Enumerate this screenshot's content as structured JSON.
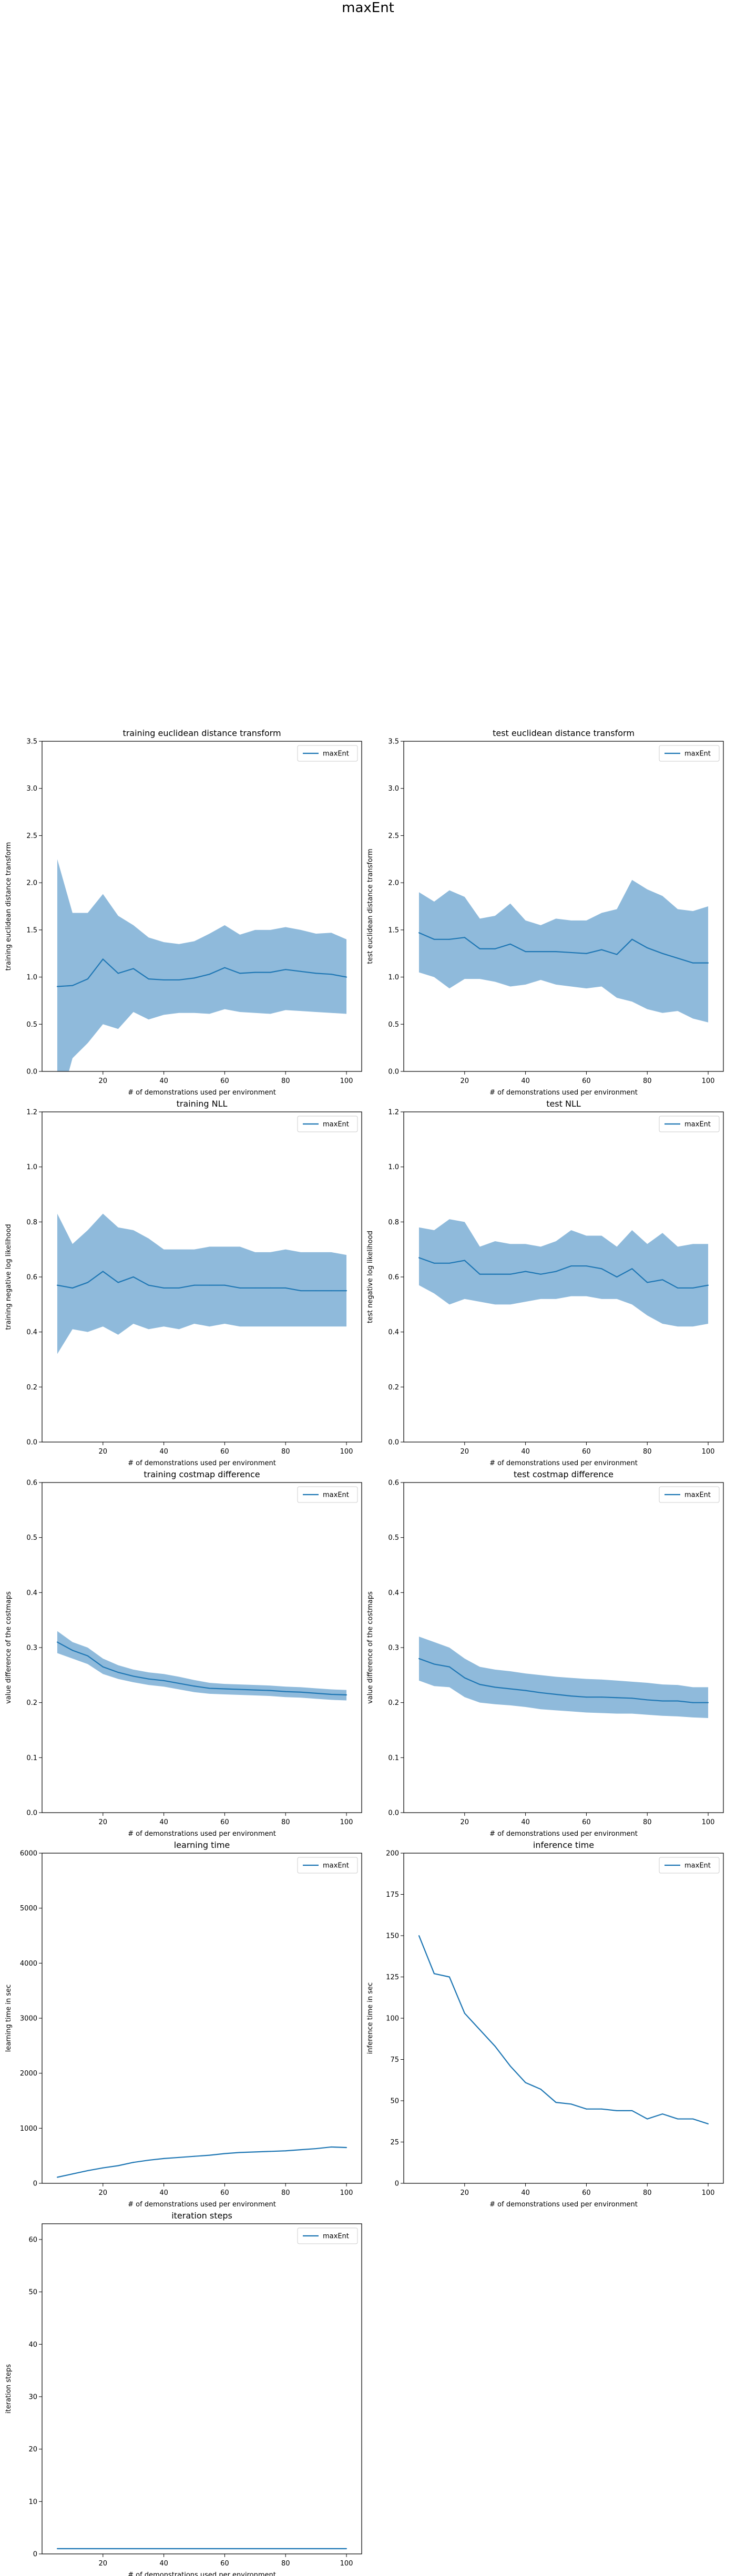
{
  "figure": {
    "title": "maxEnt"
  },
  "style": {
    "line_color": "#1f77b4",
    "band_color": "#8fbadb",
    "axes_color": "#000000"
  },
  "chart_data": [
    {
      "type": "line",
      "title": "training euclidean distance transform",
      "xlabel": "# of demonstrations used per environment",
      "ylabel": "training euclidean distance transform",
      "xlim": [
        0,
        105
      ],
      "ylim": [
        0,
        3.5
      ],
      "xticks": [
        20,
        40,
        60,
        80,
        100
      ],
      "yticks": [
        0.0,
        0.5,
        1.0,
        1.5,
        2.0,
        2.5,
        3.0,
        3.5
      ],
      "ytick_labels": [
        "0.0",
        "0.5",
        "1.0",
        "1.5",
        "2.0",
        "2.5",
        "3.0",
        "3.5"
      ],
      "legend": "top-right",
      "grid": false,
      "series": [
        {
          "name": "maxEnt",
          "x": [
            5,
            10,
            15,
            20,
            25,
            30,
            35,
            40,
            45,
            50,
            55,
            60,
            65,
            70,
            75,
            80,
            85,
            90,
            95,
            100
          ],
          "y": [
            0.9,
            0.91,
            0.98,
            1.19,
            1.04,
            1.09,
            0.98,
            0.97,
            0.97,
            0.99,
            1.03,
            1.1,
            1.04,
            1.05,
            1.05,
            1.08,
            1.06,
            1.04,
            1.03,
            1.0
          ],
          "upper": [
            2.25,
            1.68,
            1.68,
            1.88,
            1.65,
            1.55,
            1.42,
            1.37,
            1.35,
            1.38,
            1.46,
            1.55,
            1.45,
            1.5,
            1.5,
            1.53,
            1.5,
            1.46,
            1.47,
            1.4
          ],
          "lower": [
            -0.45,
            0.14,
            0.3,
            0.5,
            0.45,
            0.63,
            0.55,
            0.6,
            0.62,
            0.62,
            0.61,
            0.66,
            0.63,
            0.62,
            0.61,
            0.65,
            0.64,
            0.63,
            0.62,
            0.61
          ]
        }
      ]
    },
    {
      "type": "line",
      "title": "test euclidean distance transform",
      "xlabel": "# of demonstrations used per environment",
      "ylabel": "test euclidean distance transform",
      "xlim": [
        0,
        105
      ],
      "ylim": [
        0,
        3.5
      ],
      "xticks": [
        20,
        40,
        60,
        80,
        100
      ],
      "yticks": [
        0.0,
        0.5,
        1.0,
        1.5,
        2.0,
        2.5,
        3.0,
        3.5
      ],
      "ytick_labels": [
        "0.0",
        "0.5",
        "1.0",
        "1.5",
        "2.0",
        "2.5",
        "3.0",
        "3.5"
      ],
      "legend": "top-right",
      "grid": false,
      "series": [
        {
          "name": "maxEnt",
          "x": [
            5,
            10,
            15,
            20,
            25,
            30,
            35,
            40,
            45,
            50,
            55,
            60,
            65,
            70,
            75,
            80,
            85,
            90,
            95,
            100
          ],
          "y": [
            1.47,
            1.4,
            1.4,
            1.42,
            1.3,
            1.3,
            1.35,
            1.27,
            1.27,
            1.27,
            1.26,
            1.25,
            1.29,
            1.24,
            1.4,
            1.31,
            1.25,
            1.2,
            1.15,
            1.15
          ],
          "upper": [
            1.9,
            1.8,
            1.92,
            1.85,
            1.62,
            1.65,
            1.78,
            1.6,
            1.55,
            1.62,
            1.6,
            1.6,
            1.68,
            1.72,
            2.03,
            1.93,
            1.86,
            1.72,
            1.7,
            1.75
          ],
          "lower": [
            1.05,
            1.0,
            0.88,
            0.98,
            0.98,
            0.95,
            0.9,
            0.92,
            0.97,
            0.92,
            0.9,
            0.88,
            0.9,
            0.78,
            0.74,
            0.66,
            0.62,
            0.64,
            0.56,
            0.52
          ]
        }
      ]
    },
    {
      "type": "line",
      "title": "training NLL",
      "xlabel": "# of demonstrations used per environment",
      "ylabel": "training negative log likelihood",
      "xlim": [
        0,
        105
      ],
      "ylim": [
        0,
        1.2
      ],
      "xticks": [
        20,
        40,
        60,
        80,
        100
      ],
      "yticks": [
        0.0,
        0.2,
        0.4,
        0.6,
        0.8,
        1.0,
        1.2
      ],
      "ytick_labels": [
        "0.0",
        "0.2",
        "0.4",
        "0.6",
        "0.8",
        "1.0",
        "1.2"
      ],
      "legend": "top-right",
      "grid": false,
      "series": [
        {
          "name": "maxEnt",
          "x": [
            5,
            10,
            15,
            20,
            25,
            30,
            35,
            40,
            45,
            50,
            55,
            60,
            65,
            70,
            75,
            80,
            85,
            90,
            95,
            100
          ],
          "y": [
            0.57,
            0.56,
            0.58,
            0.62,
            0.58,
            0.6,
            0.57,
            0.56,
            0.56,
            0.57,
            0.57,
            0.57,
            0.56,
            0.56,
            0.56,
            0.56,
            0.55,
            0.55,
            0.55,
            0.55
          ],
          "upper": [
            0.83,
            0.72,
            0.77,
            0.83,
            0.78,
            0.77,
            0.74,
            0.7,
            0.7,
            0.7,
            0.71,
            0.71,
            0.71,
            0.69,
            0.69,
            0.7,
            0.69,
            0.69,
            0.69,
            0.68
          ],
          "lower": [
            0.32,
            0.41,
            0.4,
            0.42,
            0.39,
            0.43,
            0.41,
            0.42,
            0.41,
            0.43,
            0.42,
            0.43,
            0.42,
            0.42,
            0.42,
            0.42,
            0.42,
            0.42,
            0.42,
            0.42
          ]
        }
      ]
    },
    {
      "type": "line",
      "title": "test NLL",
      "xlabel": "# of demonstrations used per environment",
      "ylabel": "test negative log likelihood",
      "xlim": [
        0,
        105
      ],
      "ylim": [
        0,
        1.2
      ],
      "xticks": [
        20,
        40,
        60,
        80,
        100
      ],
      "yticks": [
        0.0,
        0.2,
        0.4,
        0.6,
        0.8,
        1.0,
        1.2
      ],
      "ytick_labels": [
        "0.0",
        "0.2",
        "0.4",
        "0.6",
        "0.8",
        "1.0",
        "1.2"
      ],
      "legend": "top-right",
      "grid": false,
      "series": [
        {
          "name": "maxEnt",
          "x": [
            5,
            10,
            15,
            20,
            25,
            30,
            35,
            40,
            45,
            50,
            55,
            60,
            65,
            70,
            75,
            80,
            85,
            90,
            95,
            100
          ],
          "y": [
            0.67,
            0.65,
            0.65,
            0.66,
            0.61,
            0.61,
            0.61,
            0.62,
            0.61,
            0.62,
            0.64,
            0.64,
            0.63,
            0.6,
            0.63,
            0.58,
            0.59,
            0.56,
            0.56,
            0.57
          ],
          "upper": [
            0.78,
            0.77,
            0.81,
            0.8,
            0.71,
            0.73,
            0.72,
            0.72,
            0.71,
            0.73,
            0.77,
            0.75,
            0.75,
            0.71,
            0.77,
            0.72,
            0.76,
            0.71,
            0.72,
            0.72
          ],
          "lower": [
            0.57,
            0.54,
            0.5,
            0.52,
            0.51,
            0.5,
            0.5,
            0.51,
            0.52,
            0.52,
            0.53,
            0.53,
            0.52,
            0.52,
            0.5,
            0.46,
            0.43,
            0.42,
            0.42,
            0.43
          ]
        }
      ]
    },
    {
      "type": "line",
      "title": "training costmap difference",
      "xlabel": "# of demonstrations used per environment",
      "ylabel": "value difference of the costmaps",
      "xlim": [
        0,
        105
      ],
      "ylim": [
        0,
        0.6
      ],
      "xticks": [
        20,
        40,
        60,
        80,
        100
      ],
      "yticks": [
        0.0,
        0.1,
        0.2,
        0.3,
        0.4,
        0.5,
        0.6
      ],
      "ytick_labels": [
        "0.0",
        "0.1",
        "0.2",
        "0.3",
        "0.4",
        "0.5",
        "0.6"
      ],
      "legend": "top-right",
      "grid": false,
      "series": [
        {
          "name": "maxEnt",
          "x": [
            5,
            10,
            15,
            20,
            25,
            30,
            35,
            40,
            45,
            50,
            55,
            60,
            65,
            70,
            75,
            80,
            85,
            90,
            95,
            100
          ],
          "y": [
            0.31,
            0.295,
            0.285,
            0.265,
            0.255,
            0.248,
            0.243,
            0.24,
            0.235,
            0.23,
            0.226,
            0.225,
            0.224,
            0.223,
            0.222,
            0.22,
            0.219,
            0.217,
            0.215,
            0.214
          ],
          "upper": [
            0.33,
            0.31,
            0.3,
            0.28,
            0.268,
            0.26,
            0.255,
            0.252,
            0.247,
            0.241,
            0.236,
            0.234,
            0.233,
            0.232,
            0.231,
            0.229,
            0.228,
            0.226,
            0.224,
            0.223
          ],
          "lower": [
            0.29,
            0.28,
            0.27,
            0.252,
            0.243,
            0.237,
            0.232,
            0.229,
            0.224,
            0.219,
            0.216,
            0.215,
            0.214,
            0.213,
            0.212,
            0.21,
            0.209,
            0.207,
            0.205,
            0.204
          ]
        }
      ]
    },
    {
      "type": "line",
      "title": "test costmap difference",
      "xlabel": "# of demonstrations used per environment",
      "ylabel": "value difference of the costmaps",
      "xlim": [
        0,
        105
      ],
      "ylim": [
        0,
        0.6
      ],
      "xticks": [
        20,
        40,
        60,
        80,
        100
      ],
      "yticks": [
        0.0,
        0.1,
        0.2,
        0.3,
        0.4,
        0.5,
        0.6
      ],
      "ytick_labels": [
        "0.0",
        "0.1",
        "0.2",
        "0.3",
        "0.4",
        "0.5",
        "0.6"
      ],
      "legend": "top-right",
      "grid": false,
      "series": [
        {
          "name": "maxEnt",
          "x": [
            5,
            10,
            15,
            20,
            25,
            30,
            35,
            40,
            45,
            50,
            55,
            60,
            65,
            70,
            75,
            80,
            85,
            90,
            95,
            100
          ],
          "y": [
            0.28,
            0.27,
            0.265,
            0.245,
            0.233,
            0.228,
            0.225,
            0.222,
            0.218,
            0.215,
            0.212,
            0.21,
            0.21,
            0.209,
            0.208,
            0.205,
            0.203,
            0.203,
            0.2,
            0.2
          ],
          "upper": [
            0.32,
            0.31,
            0.3,
            0.28,
            0.265,
            0.26,
            0.257,
            0.253,
            0.25,
            0.247,
            0.245,
            0.243,
            0.242,
            0.24,
            0.238,
            0.236,
            0.233,
            0.232,
            0.228,
            0.228
          ],
          "lower": [
            0.24,
            0.23,
            0.228,
            0.21,
            0.2,
            0.197,
            0.195,
            0.192,
            0.188,
            0.186,
            0.184,
            0.182,
            0.181,
            0.18,
            0.18,
            0.178,
            0.176,
            0.175,
            0.173,
            0.172
          ]
        }
      ]
    },
    {
      "type": "line",
      "title": "learning time",
      "xlabel": "# of demonstrations used per environment",
      "ylabel": "learning time in sec",
      "xlim": [
        0,
        105
      ],
      "ylim": [
        0,
        6000
      ],
      "xticks": [
        20,
        40,
        60,
        80,
        100
      ],
      "yticks": [
        0,
        1000,
        2000,
        3000,
        4000,
        5000,
        6000
      ],
      "ytick_labels": [
        "0",
        "1000",
        "2000",
        "3000",
        "4000",
        "5000",
        "6000"
      ],
      "legend": "top-right",
      "grid": false,
      "series": [
        {
          "name": "maxEnt",
          "x": [
            5,
            10,
            15,
            20,
            25,
            30,
            35,
            40,
            45,
            50,
            55,
            60,
            65,
            70,
            75,
            80,
            85,
            90,
            95,
            100
          ],
          "y": [
            110,
            170,
            230,
            280,
            320,
            380,
            420,
            450,
            470,
            490,
            510,
            540,
            560,
            570,
            580,
            590,
            610,
            630,
            660,
            650
          ]
        }
      ]
    },
    {
      "type": "line",
      "title": "inference time",
      "xlabel": "# of demonstrations used per environment",
      "ylabel": "inference time in sec",
      "xlim": [
        0,
        105
      ],
      "ylim": [
        0,
        200
      ],
      "xticks": [
        20,
        40,
        60,
        80,
        100
      ],
      "yticks": [
        0,
        25,
        50,
        75,
        100,
        125,
        150,
        175,
        200
      ],
      "ytick_labels": [
        "0",
        "25",
        "50",
        "75",
        "100",
        "125",
        "150",
        "175",
        "200"
      ],
      "legend": "top-right",
      "grid": false,
      "series": [
        {
          "name": "maxEnt",
          "x": [
            5,
            10,
            15,
            20,
            25,
            30,
            35,
            40,
            45,
            50,
            55,
            60,
            65,
            70,
            75,
            80,
            85,
            90,
            95,
            100
          ],
          "y": [
            150,
            127,
            125,
            103,
            93,
            83,
            71,
            61,
            57,
            49,
            48,
            45,
            45,
            44,
            44,
            39,
            42,
            39,
            39,
            36
          ]
        }
      ]
    },
    {
      "type": "line",
      "title": "iteration steps",
      "xlabel": "# of demonstrations used per environment",
      "ylabel": "iteration steps",
      "xlim": [
        0,
        105
      ],
      "ylim": [
        0,
        63
      ],
      "xticks": [
        20,
        40,
        60,
        80,
        100
      ],
      "yticks": [
        0,
        10,
        20,
        30,
        40,
        50,
        60
      ],
      "ytick_labels": [
        "0",
        "10",
        "20",
        "30",
        "40",
        "50",
        "60"
      ],
      "legend": "top-right",
      "grid": false,
      "series": [
        {
          "name": "maxEnt",
          "x": [
            5,
            10,
            15,
            20,
            25,
            30,
            35,
            40,
            45,
            50,
            55,
            60,
            65,
            70,
            75,
            80,
            85,
            90,
            95,
            100
          ],
          "y": [
            1,
            1,
            1,
            1,
            1,
            1,
            1,
            1,
            1,
            1,
            1,
            1,
            1,
            1,
            1,
            1,
            1,
            1,
            1,
            1
          ]
        }
      ]
    }
  ]
}
